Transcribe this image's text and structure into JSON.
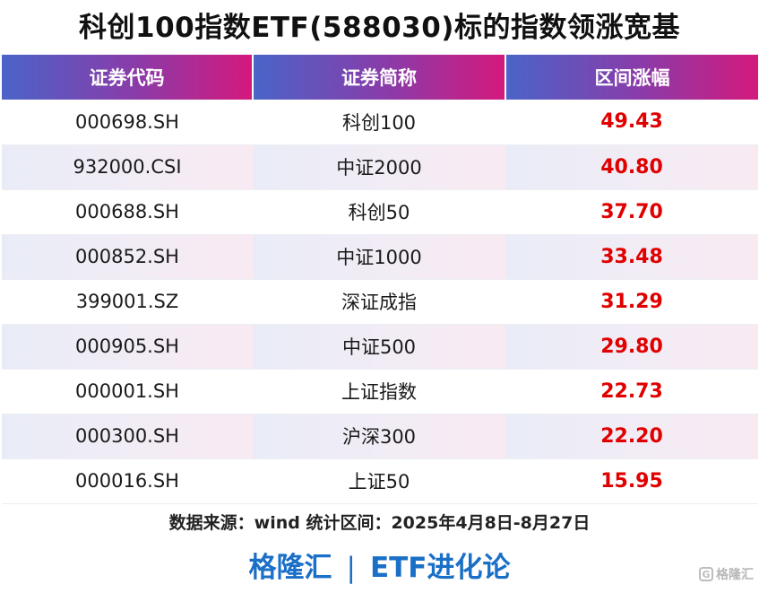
{
  "title": "科创100指数ETF(588030)标的指数领涨宽基",
  "table": {
    "headers": [
      "证券代码",
      "证券简称",
      "区间涨幅"
    ],
    "rows": [
      {
        "code": "000698.SH",
        "name": "科创100",
        "change": "49.43"
      },
      {
        "code": "932000.CSI",
        "name": "中证2000",
        "change": "40.80"
      },
      {
        "code": "000688.SH",
        "name": "科创50",
        "change": "37.70"
      },
      {
        "code": "000852.SH",
        "name": "中证1000",
        "change": "33.48"
      },
      {
        "code": "399001.SZ",
        "name": "深证成指",
        "change": "31.29"
      },
      {
        "code": "000905.SH",
        "name": "中证500",
        "change": "29.80"
      },
      {
        "code": "000001.SH",
        "name": "上证指数",
        "change": "22.73"
      },
      {
        "code": "000300.SH",
        "name": "沪深300",
        "change": "22.20"
      },
      {
        "code": "000016.SH",
        "name": "上证50",
        "change": "15.95"
      }
    ]
  },
  "source": "数据来源：wind 统计区间：2025年4月8日-8月27日",
  "brand": {
    "left": "格隆汇",
    "separator": "|",
    "right": "ETF进化论"
  },
  "watermark": {
    "icon": "gelonghui-logo-icon",
    "text": "格隆汇"
  },
  "colors": {
    "header_gradient_start": "#4a64c8",
    "header_gradient_end": "#d4197c",
    "change_text": "#e00000",
    "brand_blue": "#1a6fc6"
  }
}
